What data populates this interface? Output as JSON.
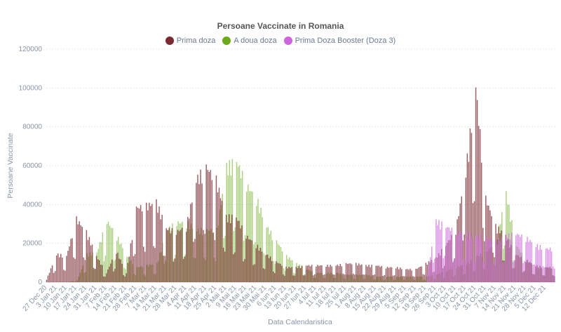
{
  "chart_data": {
    "type": "bar",
    "title": "Persoane Vaccinate in Romania",
    "xlabel": "Data Calendaristica",
    "ylabel": "Persoane Vaccinate",
    "ylim": [
      0,
      120000
    ],
    "yticks": [
      "0",
      "20000",
      "40000",
      "60000",
      "80000",
      "100000",
      "120000"
    ],
    "grid": true,
    "legend_position": "top-center",
    "x_tick_labels": [
      "27 Dec 20",
      "3 Jan 21",
      "10 Jan 21",
      "17 Jan 21",
      "24 Jan 21",
      "31 Jan 21",
      "7 Feb 21",
      "14 Feb 21",
      "21 Feb 21",
      "28 Feb 21",
      "7 Mar 21",
      "14 Mar 21",
      "21 Mar 21",
      "28 Mar 21",
      "4 Apr 21",
      "11 Apr 21",
      "18 Apr 21",
      "25 Apr 21",
      "2 Mai 21",
      "9 Mai 21",
      "16 Mai 21",
      "23 Mai 21",
      "30 Mai 21",
      "6 Iun 21",
      "13 Iun 21",
      "20 Iun 21",
      "27 Iun 21",
      "4 Iul 21",
      "11 Iul 21",
      "18 Iul 21",
      "25 Iul 21",
      "1 Aug 21",
      "8 Aug 21",
      "15 Aug 21",
      "22 Aug 21",
      "29 Aug 21",
      "5 Sep 21",
      "12 Sep 21",
      "19 Sep 21",
      "26 Sep 21",
      "3 Oct 21",
      "10 Oct 21",
      "17 Oct 21",
      "24 Oct 21",
      "31 Oct 21",
      "7 Nov 21",
      "14 Nov 21",
      "21 Nov 21",
      "28 Nov 21",
      "5 Dec 21",
      "12 Dec 21"
    ],
    "series": [
      {
        "name": "Prima doza",
        "color": "#7a2a32",
        "weekly_values": [
          1500,
          15000,
          14000,
          34000,
          27000,
          14000,
          5000,
          17000,
          5000,
          40000,
          41000,
          43000,
          29000,
          27000,
          30000,
          55000,
          62000,
          55000,
          35000,
          35000,
          25000,
          20000,
          15000,
          11000,
          8000,
          8000,
          9000,
          9000,
          9000,
          9000,
          10000,
          10000,
          9000,
          9000,
          8000,
          8000,
          7000,
          7000,
          10000,
          13000,
          20000,
          28000,
          60000,
          105000,
          45000,
          30000,
          25000,
          15000,
          12000,
          9000,
          8000
        ]
      },
      {
        "name": "A doua doza",
        "color": "#6aaa1c",
        "weekly_values": [
          0,
          0,
          0,
          1000,
          15000,
          16000,
          33000,
          25000,
          14000,
          8000,
          9000,
          10000,
          28000,
          32000,
          32000,
          28000,
          28000,
          28000,
          62000,
          65000,
          52000,
          45000,
          30000,
          22000,
          14000,
          10000,
          7000,
          5000,
          5000,
          5000,
          4000,
          4000,
          4000,
          3000,
          3000,
          3000,
          3000,
          3000,
          3000,
          4000,
          6000,
          8000,
          10000,
          14000,
          16000,
          22000,
          48000,
          20000,
          12000,
          8000,
          8000
        ]
      },
      {
        "name": "Prima Doza Booster (Doza 3)",
        "color": "#cc66dd",
        "weekly_values": [
          0,
          0,
          0,
          0,
          0,
          0,
          0,
          0,
          0,
          0,
          0,
          0,
          0,
          0,
          0,
          0,
          0,
          0,
          0,
          0,
          0,
          0,
          0,
          0,
          0,
          0,
          0,
          0,
          0,
          0,
          0,
          0,
          0,
          0,
          0,
          0,
          0,
          0,
          0,
          33000,
          30000,
          27000,
          26000,
          25000,
          24000,
          22000,
          25000,
          26000,
          24000,
          20000,
          18000
        ]
      }
    ]
  }
}
